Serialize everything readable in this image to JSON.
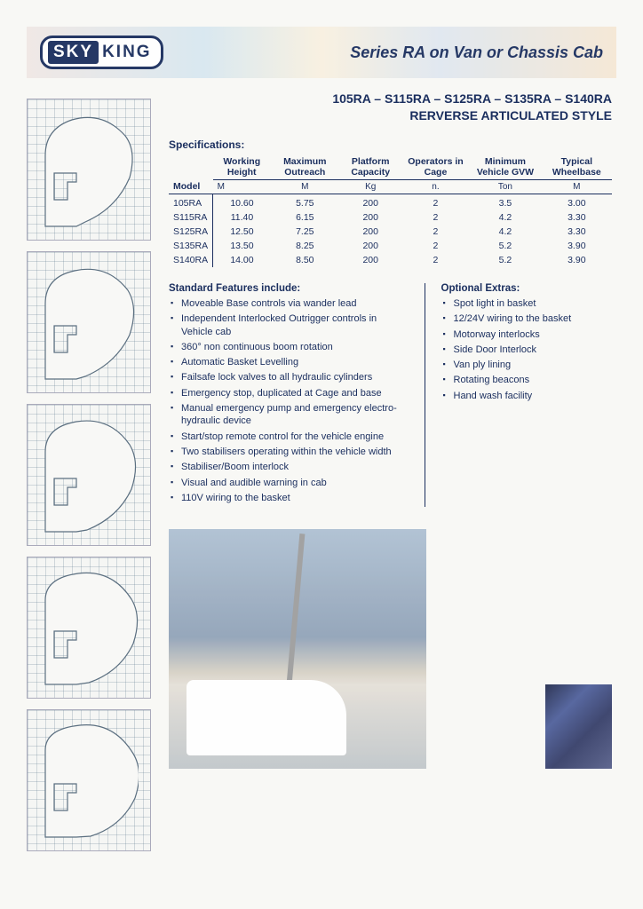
{
  "logo": {
    "sky": "SKY",
    "king": "KING"
  },
  "tagline": "Series RA on Van or Chassis Cab",
  "series_title": "105RA – S115RA – S125RA – S135RA – S140RA",
  "series_subtitle": "RERVERSE ARTICULATED STYLE",
  "spec_label": "Specifications:",
  "table": {
    "headers": [
      "Model",
      "Working Height",
      "Maximum Outreach",
      "Platform Capacity",
      "Operators in Cage",
      "Minimum Vehicle GVW",
      "Typical Wheelbase"
    ],
    "units": [
      "",
      "M",
      "M",
      "Kg",
      "n.",
      "Ton",
      "M"
    ],
    "rows": [
      [
        "105RA",
        "10.60",
        "5.75",
        "200",
        "2",
        "3.5",
        "3.00"
      ],
      [
        "S115RA",
        "11.40",
        "6.15",
        "200",
        "2",
        "4.2",
        "3.30"
      ],
      [
        "S125RA",
        "12.50",
        "7.25",
        "200",
        "2",
        "4.2",
        "3.30"
      ],
      [
        "S135RA",
        "13.50",
        "8.25",
        "200",
        "2",
        "5.2",
        "3.90"
      ],
      [
        "S140RA",
        "14.00",
        "8.50",
        "200",
        "2",
        "5.2",
        "3.90"
      ]
    ]
  },
  "standard_heading": "Standard Features include:",
  "standard_features": [
    "Moveable Base controls via wander lead",
    "Independent Interlocked Outrigger controls in Vehicle cab",
    "360° non continuous boom rotation",
    "Automatic Basket Levelling",
    "Failsafe lock valves to all hydraulic cylinders",
    "Emergency stop, duplicated at Cage and base",
    "Manual emergency pump and emergency electro-hydraulic device",
    "Start/stop remote control for the vehicle engine",
    "Two stabilisers operating within the vehicle width",
    "Stabiliser/Boom interlock",
    "Visual and audible warning in cab",
    "110V wiring to the basket"
  ],
  "optional_heading": "Optional Extras:",
  "optional_extras": [
    "Spot light in basket",
    "12/24V wiring to the basket",
    "Motorway interlocks",
    "Side Door Interlock",
    "Van ply lining",
    "Rotating beacons",
    "Hand wash facility"
  ],
  "chart_style": {
    "grid_color": "rgba(90,120,140,0.25)",
    "grid_step": 10,
    "shape_fill": "#f8f8f6",
    "shape_stroke": "#5b6f80",
    "shape_stroke_width": 1.2
  }
}
